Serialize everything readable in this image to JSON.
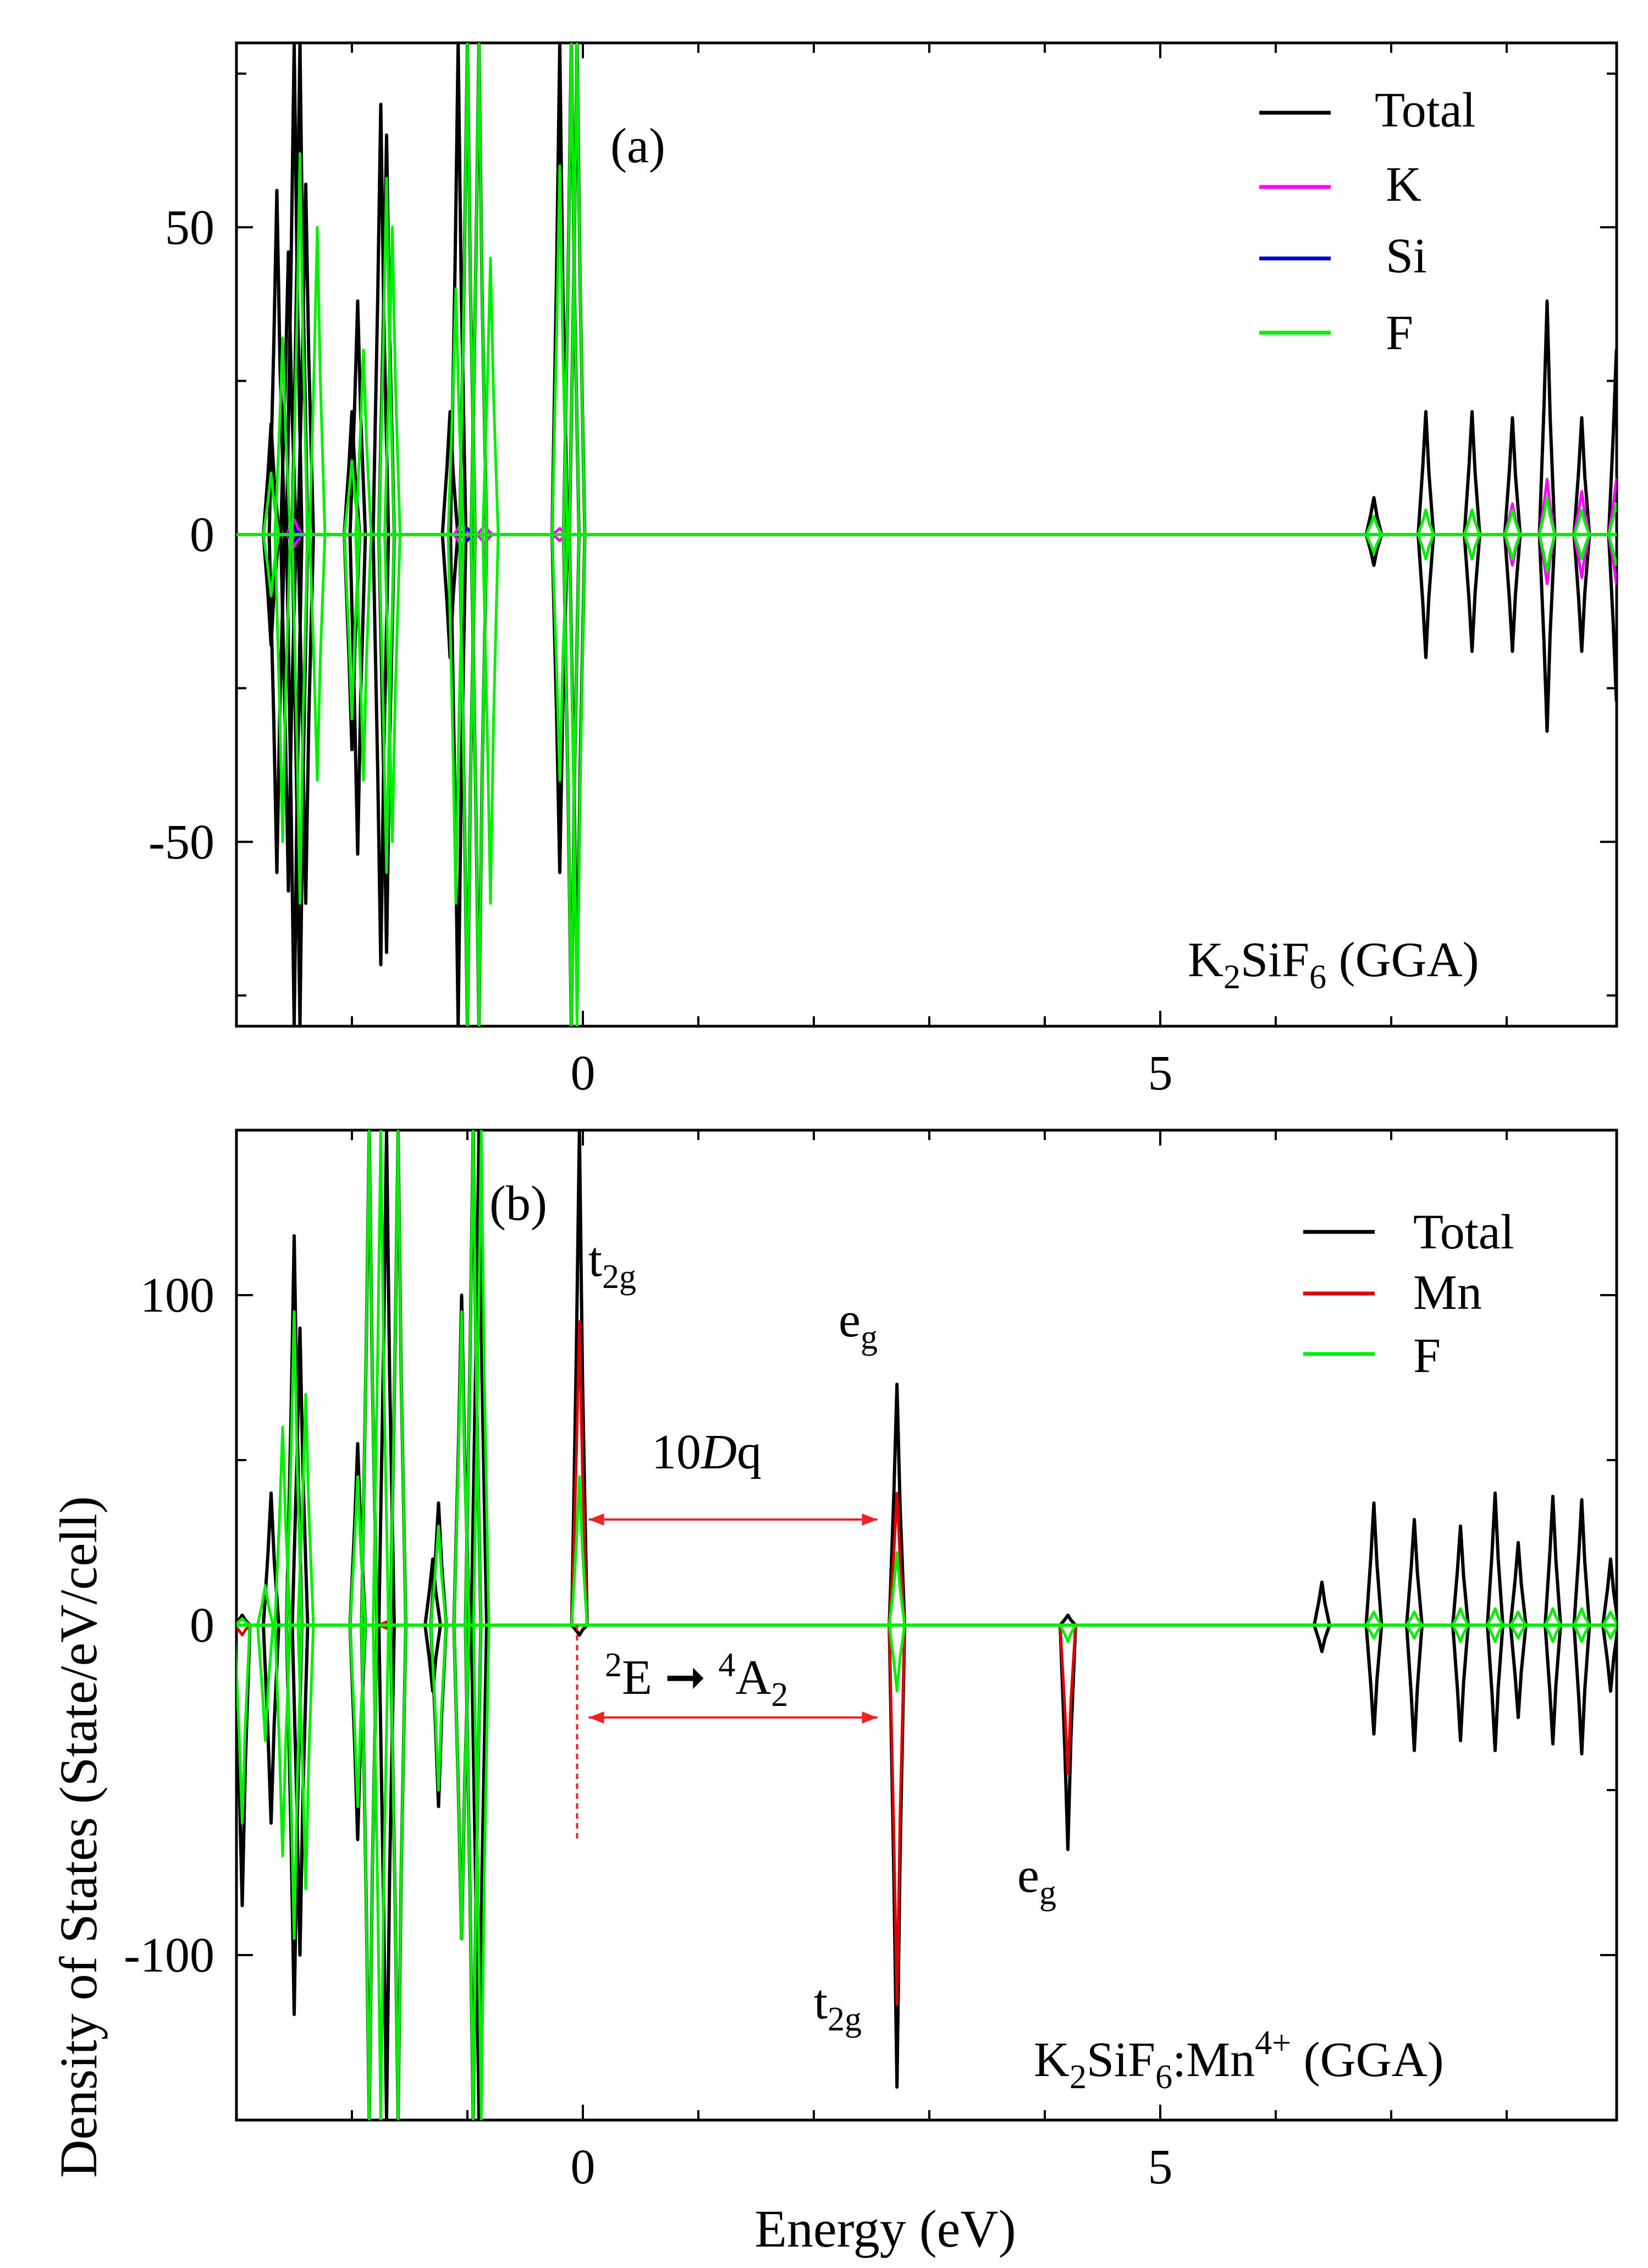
{
  "xlabel": "Energy (eV)",
  "ylabel": "Density of States (State/eV/cell)",
  "colors": {
    "Total": "#000000",
    "K": "#ff00ff",
    "Si": "#0000cc",
    "F": "#00ee00",
    "Mn": "#dd0000",
    "arrow": "#ee2222"
  },
  "chart_data": [
    {
      "type": "line",
      "panel_label": "(a)",
      "title": "K2SiF6 (GGA)",
      "title_parts": {
        "a": "K",
        "b": "2",
        "c": "SiF",
        "d": "6",
        "e": " (GGA)"
      },
      "xlim": [
        -3,
        9
      ],
      "ylim": [
        -80,
        80
      ],
      "xticks": [
        {
          "v": 0,
          "label": "0"
        },
        {
          "v": 5,
          "label": "5"
        }
      ],
      "yticks": [
        {
          "v": 50,
          "label": "50"
        },
        {
          "v": 0,
          "label": "0"
        },
        {
          "v": -50,
          "label": "-50"
        }
      ],
      "legend": [
        "Total",
        "K",
        "Si",
        "F"
      ],
      "legend_position": "top-right",
      "series": [
        {
          "name": "Total",
          "peaks": [
            {
              "x": -2.7,
              "up": 18,
              "dn": -18
            },
            {
              "x": -2.65,
              "up": 56,
              "dn": -55
            },
            {
              "x": -2.55,
              "up": 46,
              "dn": -58
            },
            {
              "x": -2.5,
              "up": 80,
              "dn": -80
            },
            {
              "x": -2.45,
              "up": 80,
              "dn": -80
            },
            {
              "x": -2.4,
              "up": 57,
              "dn": -60
            },
            {
              "x": -2.0,
              "up": 20,
              "dn": -35
            },
            {
              "x": -1.95,
              "up": 38,
              "dn": -52
            },
            {
              "x": -1.75,
              "up": 70,
              "dn": -70
            },
            {
              "x": -1.7,
              "up": 65,
              "dn": -68
            },
            {
              "x": -1.15,
              "up": 20,
              "dn": -20
            },
            {
              "x": -1.08,
              "up": 80,
              "dn": -80
            },
            {
              "x": -1.0,
              "up": 80,
              "dn": -80
            },
            {
              "x": -0.9,
              "up": 80,
              "dn": -80
            },
            {
              "x": -0.2,
              "up": 80,
              "dn": -55
            },
            {
              "x": -0.1,
              "up": 80,
              "dn": -80
            },
            {
              "x": -0.05,
              "up": 80,
              "dn": -75
            },
            {
              "x": 6.85,
              "up": 6,
              "dn": -5
            },
            {
              "x": 7.3,
              "up": 20,
              "dn": -20
            },
            {
              "x": 7.7,
              "up": 20,
              "dn": -19
            },
            {
              "x": 8.05,
              "up": 19,
              "dn": -19
            },
            {
              "x": 8.35,
              "up": 38,
              "dn": -32
            },
            {
              "x": 8.65,
              "up": 19,
              "dn": -19
            },
            {
              "x": 8.95,
              "up": 30,
              "dn": -27
            }
          ]
        },
        {
          "name": "K",
          "peaks": [
            {
              "x": -2.5,
              "up": 2.5,
              "dn": -2
            },
            {
              "x": -1.05,
              "up": 2,
              "dn": -2
            },
            {
              "x": -0.85,
              "up": 1.5,
              "dn": -1.5
            },
            {
              "x": -0.2,
              "up": 1,
              "dn": -1
            },
            {
              "x": 7.3,
              "up": 4,
              "dn": -4
            },
            {
              "x": 7.7,
              "up": 4,
              "dn": -4
            },
            {
              "x": 8.05,
              "up": 5,
              "dn": -5
            },
            {
              "x": 8.35,
              "up": 9,
              "dn": -8
            },
            {
              "x": 8.65,
              "up": 7,
              "dn": -7
            },
            {
              "x": 8.95,
              "up": 9,
              "dn": -8
            }
          ]
        },
        {
          "name": "Si",
          "peaks": [
            {
              "x": -2.5,
              "up": 1,
              "dn": -1
            },
            {
              "x": -1.0,
              "up": 1,
              "dn": -1
            }
          ]
        },
        {
          "name": "F",
          "peaks": [
            {
              "x": -2.7,
              "up": 10,
              "dn": -10
            },
            {
              "x": -2.6,
              "up": 32,
              "dn": -50
            },
            {
              "x": -2.45,
              "up": 62,
              "dn": -60
            },
            {
              "x": -2.3,
              "up": 50,
              "dn": -40
            },
            {
              "x": -2.0,
              "up": 12,
              "dn": -30
            },
            {
              "x": -1.9,
              "up": 30,
              "dn": -40
            },
            {
              "x": -1.7,
              "up": 58,
              "dn": -55
            },
            {
              "x": -1.65,
              "up": 50,
              "dn": -50
            },
            {
              "x": -1.1,
              "up": 40,
              "dn": -60
            },
            {
              "x": -1.0,
              "up": 80,
              "dn": -80
            },
            {
              "x": -0.9,
              "up": 80,
              "dn": -80
            },
            {
              "x": -0.8,
              "up": 45,
              "dn": -60
            },
            {
              "x": -0.2,
              "up": 60,
              "dn": -40
            },
            {
              "x": -0.1,
              "up": 80,
              "dn": -80
            },
            {
              "x": -0.05,
              "up": 80,
              "dn": -80
            },
            {
              "x": 6.85,
              "up": 3,
              "dn": -3
            },
            {
              "x": 7.3,
              "up": 4,
              "dn": -4
            },
            {
              "x": 7.7,
              "up": 4,
              "dn": -4
            },
            {
              "x": 8.05,
              "up": 4,
              "dn": -4
            },
            {
              "x": 8.35,
              "up": 6,
              "dn": -6
            },
            {
              "x": 8.65,
              "up": 4,
              "dn": -4
            },
            {
              "x": 8.95,
              "up": 5,
              "dn": -5
            }
          ]
        }
      ]
    },
    {
      "type": "line",
      "panel_label": "(b)",
      "title": "K2SiF6:Mn4+ (GGA)",
      "title_parts": {
        "a": "K",
        "b": "2",
        "c": "SiF",
        "d": "6",
        "e": ":Mn",
        "f": "4+",
        "g": " (GGA)"
      },
      "xlim": [
        -3,
        9
      ],
      "ylim": [
        -150,
        150
      ],
      "xticks": [
        {
          "v": 0,
          "label": "0"
        },
        {
          "v": 5,
          "label": "5"
        }
      ],
      "yticks": [
        {
          "v": 100,
          "label": "100"
        },
        {
          "v": 0,
          "label": "0"
        },
        {
          "v": -100,
          "label": "-100"
        }
      ],
      "legend": [
        "Total",
        "Mn",
        "F"
      ],
      "legend_position": "top-right",
      "annotations": [
        {
          "label": "t2g",
          "x": 0.1,
          "y": 110
        },
        {
          "label": "eg",
          "x": 2.5,
          "y": 90
        },
        {
          "label": "eg",
          "x": 4.0,
          "y": -82
        },
        {
          "label": "t2g",
          "x": 2.3,
          "y": -125
        },
        {
          "label": "10Dq",
          "x": 1.5,
          "y": 55
        },
        {
          "label": "2E → 4A2",
          "x": 1.4,
          "y": -55
        }
      ],
      "arrow_spans": [
        {
          "x0": 0.05,
          "x1": 2.55,
          "y": 32
        },
        {
          "x0": 0.05,
          "x1": 2.55,
          "y": -28
        }
      ],
      "dashed_marker": {
        "x": -0.05,
        "y0": 0,
        "y1": -65
      },
      "series": [
        {
          "name": "Total",
          "peaks": [
            {
              "x": -2.95,
              "up": 3,
              "dn": -85
            },
            {
              "x": -2.7,
              "up": 40,
              "dn": -60
            },
            {
              "x": -2.5,
              "up": 118,
              "dn": -118
            },
            {
              "x": -2.45,
              "up": 90,
              "dn": -100
            },
            {
              "x": -1.95,
              "up": 55,
              "dn": -65
            },
            {
              "x": -1.85,
              "up": 150,
              "dn": -150
            },
            {
              "x": -1.7,
              "up": 150,
              "dn": -150
            },
            {
              "x": -1.6,
              "up": 150,
              "dn": -150
            },
            {
              "x": -1.3,
              "up": 20,
              "dn": -20
            },
            {
              "x": -1.25,
              "up": 37,
              "dn": -55
            },
            {
              "x": -1.05,
              "up": 100,
              "dn": -95
            },
            {
              "x": -0.95,
              "up": 150,
              "dn": -150
            },
            {
              "x": -0.9,
              "up": 150,
              "dn": -150
            },
            {
              "x": -0.03,
              "up": 150,
              "dn": -3
            },
            {
              "x": 2.72,
              "up": 73,
              "dn": -140
            },
            {
              "x": 4.2,
              "up": 3,
              "dn": -68
            },
            {
              "x": 6.4,
              "up": 13,
              "dn": -8
            },
            {
              "x": 6.85,
              "up": 37,
              "dn": -33
            },
            {
              "x": 7.2,
              "up": 32,
              "dn": -38
            },
            {
              "x": 7.6,
              "up": 30,
              "dn": -35
            },
            {
              "x": 7.9,
              "up": 40,
              "dn": -38
            },
            {
              "x": 8.1,
              "up": 25,
              "dn": -28
            },
            {
              "x": 8.4,
              "up": 39,
              "dn": -36
            },
            {
              "x": 8.65,
              "up": 38,
              "dn": -39
            },
            {
              "x": 8.9,
              "up": 20,
              "dn": -20
            }
          ]
        },
        {
          "name": "Mn",
          "peaks": [
            {
              "x": -2.95,
              "up": 0,
              "dn": -3
            },
            {
              "x": -1.7,
              "up": 1,
              "dn": -1
            },
            {
              "x": -0.03,
              "up": 92,
              "dn": 0
            },
            {
              "x": 2.72,
              "up": 40,
              "dn": -115
            },
            {
              "x": 4.2,
              "up": 0,
              "dn": -45
            }
          ]
        },
        {
          "name": "F",
          "peaks": [
            {
              "x": -2.95,
              "up": 2,
              "dn": -60
            },
            {
              "x": -2.75,
              "up": 12,
              "dn": -35
            },
            {
              "x": -2.6,
              "up": 60,
              "dn": -70
            },
            {
              "x": -2.5,
              "up": 95,
              "dn": -95
            },
            {
              "x": -2.4,
              "up": 70,
              "dn": -80
            },
            {
              "x": -1.95,
              "up": 45,
              "dn": -55
            },
            {
              "x": -1.85,
              "up": 150,
              "dn": -150
            },
            {
              "x": -1.75,
              "up": 150,
              "dn": -150
            },
            {
              "x": -1.6,
              "up": 150,
              "dn": -150
            },
            {
              "x": -1.25,
              "up": 30,
              "dn": -50
            },
            {
              "x": -1.05,
              "up": 95,
              "dn": -95
            },
            {
              "x": -0.95,
              "up": 150,
              "dn": -150
            },
            {
              "x": -0.88,
              "up": 150,
              "dn": -150
            },
            {
              "x": -0.03,
              "up": 45,
              "dn": 0
            },
            {
              "x": 2.72,
              "up": 22,
              "dn": -20
            },
            {
              "x": 4.2,
              "up": 0,
              "dn": -5
            },
            {
              "x": 6.85,
              "up": 4,
              "dn": -4
            },
            {
              "x": 7.2,
              "up": 4,
              "dn": -4
            },
            {
              "x": 7.6,
              "up": 5,
              "dn": -5
            },
            {
              "x": 7.9,
              "up": 5,
              "dn": -5
            },
            {
              "x": 8.1,
              "up": 4,
              "dn": -4
            },
            {
              "x": 8.4,
              "up": 5,
              "dn": -5
            },
            {
              "x": 8.65,
              "up": 5,
              "dn": -5
            },
            {
              "x": 8.9,
              "up": 4,
              "dn": -4
            }
          ]
        }
      ]
    }
  ]
}
